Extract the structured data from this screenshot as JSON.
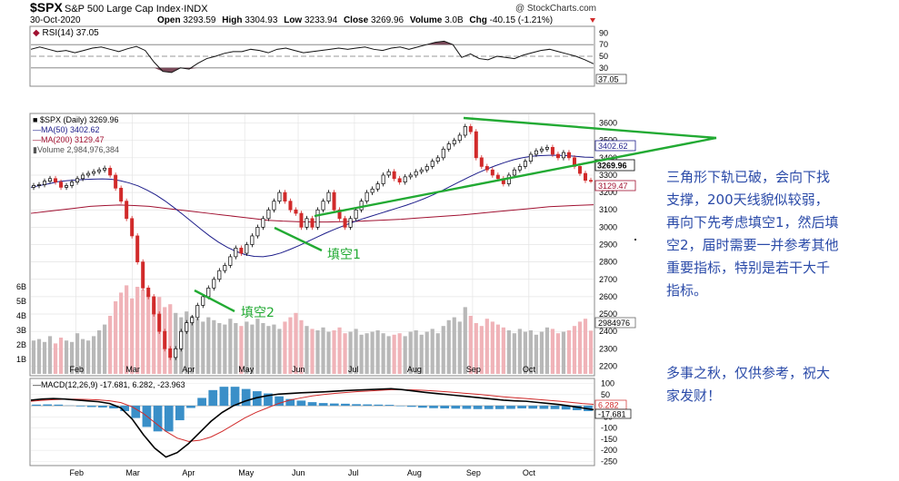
{
  "header": {
    "symbol": "$SPX",
    "name": "S&P 500 Large Cap Index",
    "exchange": "INDX",
    "date": "30-Oct-2020",
    "watermark": "@ StockCharts.com",
    "open_label": "Open",
    "open": "3293.59",
    "high_label": "High",
    "high": "3304.93",
    "low_label": "Low",
    "low": "3233.94",
    "close_label": "Close",
    "close": "3269.96",
    "volume_label": "Volume",
    "volume": "3.0B",
    "chg_label": "Chg",
    "chg": "-40.15 (-1.21%)"
  },
  "colors": {
    "up": "#000000",
    "down": "#d12a2a",
    "ma50": "#1d1d8a",
    "ma200": "#a01030",
    "rsi_fill": "#7a4a5a",
    "green": "#22aa33",
    "vol_up": "#b8b8b8",
    "vol_down": "#f0b3b8",
    "macd_hist": "#3a8fc8",
    "annotation": "#2a4aa8"
  },
  "chart_data": [
    {
      "type": "line",
      "panel": "rsi",
      "title": "RSI(14) 37.05",
      "current": "37.05",
      "ylim": [
        0,
        100
      ],
      "yticks": [
        10,
        30,
        50,
        70,
        90
      ],
      "reference_lines": [
        30,
        50,
        70
      ],
      "series": [
        {
          "name": "RSI(14)",
          "values": [
            62,
            66,
            62,
            58,
            60,
            56,
            60,
            64,
            66,
            62,
            58,
            63,
            67,
            60,
            40,
            24,
            22,
            30,
            28,
            38,
            46,
            50,
            55,
            58,
            58,
            62,
            60,
            56,
            62,
            64,
            60,
            56,
            58,
            60,
            62,
            64,
            62,
            64,
            66,
            62,
            60,
            64,
            66,
            62,
            66,
            70,
            74,
            76,
            70,
            48,
            54,
            46,
            44,
            50,
            48,
            46,
            52,
            56,
            60,
            62,
            58,
            54,
            50,
            44,
            37.05
          ]
        }
      ]
    },
    {
      "type": "candlestick",
      "panel": "price",
      "title": "$SPX (Daily) 3269.96",
      "ylim": [
        2150,
        3650
      ],
      "yticks": [
        2200,
        2300,
        2400,
        2500,
        2600,
        2700,
        2800,
        2900,
        3000,
        3100,
        3200,
        3300,
        3400,
        3500,
        3600
      ],
      "x_labels": [
        "Feb",
        "Mar",
        "Apr",
        "May",
        "Jun",
        "Jul",
        "Aug",
        "Sep",
        "Oct"
      ],
      "price_labels": {
        "close": "3269.96",
        "ma50": "3402.62",
        "ma200": "3129.47"
      },
      "legend": [
        "$SPX (Daily) 3269.96",
        "MA(50) 3402.62",
        "MA(200) 3129.47",
        "Volume 2,984,976,384"
      ],
      "close": [
        3240,
        3245,
        3265,
        3280,
        3260,
        3230,
        3240,
        3260,
        3280,
        3300,
        3310,
        3320,
        3330,
        3340,
        3300,
        3225,
        3150,
        3050,
        2950,
        2800,
        2650,
        2600,
        2500,
        2400,
        2300,
        2250,
        2300,
        2400,
        2450,
        2480,
        2550,
        2600,
        2650,
        2700,
        2750,
        2780,
        2830,
        2880,
        2850,
        2900,
        2950,
        3000,
        3050,
        3100,
        3150,
        3200,
        3150,
        3100,
        3080,
        3000,
        3050,
        3000,
        3100,
        3150,
        3200,
        3100,
        3050,
        3000,
        3050,
        3100,
        3150,
        3200,
        3220,
        3250,
        3300,
        3320,
        3280,
        3260,
        3290,
        3300,
        3320,
        3330,
        3350,
        3380,
        3400,
        3450,
        3480,
        3500,
        3530,
        3580,
        3550,
        3400,
        3350,
        3330,
        3300,
        3280,
        3250,
        3300,
        3330,
        3350,
        3380,
        3420,
        3440,
        3450,
        3460,
        3420,
        3400,
        3430,
        3400,
        3350,
        3310,
        3270,
        3269.96
      ],
      "ma50": [
        3230,
        3240,
        3250,
        3262,
        3268,
        3272,
        3275,
        3277,
        3278,
        3276,
        3268,
        3255,
        3238,
        3214,
        3186,
        3152,
        3114,
        3074,
        3032,
        2990,
        2950,
        2914,
        2884,
        2860,
        2842,
        2832,
        2830,
        2838,
        2852,
        2872,
        2894,
        2918,
        2942,
        2966,
        2988,
        3008,
        3028,
        3046,
        3062,
        3078,
        3094,
        3110,
        3126,
        3144,
        3164,
        3186,
        3210,
        3236,
        3262,
        3288,
        3312,
        3334,
        3354,
        3372,
        3388,
        3400,
        3408,
        3412,
        3414,
        3414,
        3412,
        3408,
        3404,
        3402.62
      ],
      "ma200": [
        3080,
        3090,
        3100,
        3110,
        3120,
        3125,
        3128,
        3125,
        3120,
        3110,
        3100,
        3090,
        3080,
        3070,
        3060,
        3050,
        3040,
        3035,
        3032,
        3030,
        3030,
        3032,
        3034,
        3038,
        3042,
        3046,
        3052,
        3058,
        3064,
        3070,
        3078,
        3086,
        3094,
        3102,
        3110,
        3118,
        3122,
        3126,
        3129.47
      ],
      "volume_scale": {
        "ylim": [
          0,
          7
        ],
        "yticks": [
          "1B",
          "2B",
          "3B",
          "4B",
          "5B",
          "6B"
        ],
        "current": "2984976"
      },
      "volume": [
        2.3,
        2.4,
        2.2,
        2.6,
        2.1,
        2.5,
        2.3,
        2.2,
        2.8,
        2.4,
        2.3,
        2.6,
        3.0,
        3.4,
        4.0,
        5.0,
        5.6,
        6.1,
        5.2,
        6.0,
        5.8,
        5.5,
        4.9,
        5.3,
        4.6,
        4.8,
        4.2,
        3.9,
        4.3,
        4.0,
        3.8,
        3.6,
        3.9,
        3.7,
        3.5,
        3.4,
        3.8,
        3.5,
        3.3,
        3.6,
        3.4,
        3.8,
        3.5,
        3.3,
        3.4,
        3.1,
        3.6,
        3.9,
        4.2,
        3.7,
        3.3,
        3.1,
        3.0,
        3.2,
        2.9,
        3.0,
        3.2,
        2.8,
        2.9,
        3.1,
        2.7,
        2.8,
        2.9,
        3.0,
        2.8,
        2.6,
        2.7,
        2.8,
        2.6,
        2.9,
        3.0,
        2.7,
        2.9,
        3.1,
        2.8,
        3.3,
        3.7,
        3.9,
        3.6,
        4.6,
        4.0,
        3.5,
        3.3,
        3.8,
        3.6,
        3.4,
        3.2,
        3.0,
        2.8,
        3.1,
        2.9,
        3.0,
        2.7,
        2.9,
        3.2,
        3.1,
        2.8,
        2.9,
        3.0,
        3.3,
        3.6,
        3.8,
        2.98
      ]
    },
    {
      "type": "line",
      "panel": "macd",
      "title": "MACD(12,26,9) -17.681, 6.282, -23.963",
      "legend_values": [
        "-17.681",
        "6.282",
        "-23.963"
      ],
      "ylim": [
        -260,
        110
      ],
      "yticks": [
        -250,
        -200,
        -150,
        -100,
        -50,
        0,
        50,
        100
      ],
      "x_labels": [
        "Feb",
        "Mar",
        "Apr",
        "May",
        "Jun",
        "Jul",
        "Aug",
        "Sep",
        "Oct"
      ],
      "price_labels": {
        "signal": "6.282",
        "macd": "-17.681"
      },
      "series": [
        {
          "name": "MACD(12,26,9)",
          "values": [
            25,
            30,
            32,
            30,
            26,
            22,
            18,
            10,
            -10,
            -60,
            -130,
            -190,
            -230,
            -210,
            -170,
            -120,
            -70,
            -30,
            0,
            20,
            35,
            45,
            52,
            55,
            58,
            60,
            62,
            65,
            68,
            70,
            72,
            74,
            76,
            72,
            66,
            60,
            55,
            50,
            45,
            40,
            35,
            30,
            25,
            22,
            20,
            15,
            10,
            5,
            -2,
            -10,
            -17.681
          ]
        },
        {
          "name": "Signal",
          "values": [
            20,
            24,
            27,
            29,
            29,
            28,
            26,
            22,
            14,
            -5,
            -35,
            -75,
            -115,
            -145,
            -160,
            -155,
            -140,
            -115,
            -85,
            -55,
            -30,
            -10,
            10,
            25,
            35,
            44,
            50,
            55,
            59,
            63,
            66,
            69,
            72,
            72,
            71,
            69,
            66,
            62,
            58,
            54,
            50,
            45,
            40,
            36,
            32,
            28,
            24,
            20,
            15,
            10,
            6.282
          ]
        },
        {
          "name": "Histogram",
          "values": [
            5,
            6,
            5,
            1,
            -3,
            -6,
            -8,
            -12,
            -24,
            -55,
            -95,
            -115,
            -115,
            -65,
            -10,
            35,
            70,
            85,
            85,
            75,
            65,
            55,
            42,
            30,
            23,
            16,
            12,
            10,
            9,
            7,
            6,
            5,
            4,
            0,
            -5,
            -9,
            -11,
            -12,
            -13,
            -14,
            -15,
            -15,
            -15,
            -14,
            -12,
            -13,
            -14,
            -15,
            -17,
            -20,
            -23.963
          ]
        }
      ]
    }
  ],
  "annotations": {
    "fill1": "填空1",
    "fill2": "填空2",
    "comment1": "三角形下轨已破，会向下找支撑，200天线貌似较弱，再向下先考虑填空1，然后填空2，届时需要一并参考其他重要指标，特别是若干大千指标。",
    "comment2": "多事之秋，仅供参考，祝大家发财！"
  }
}
